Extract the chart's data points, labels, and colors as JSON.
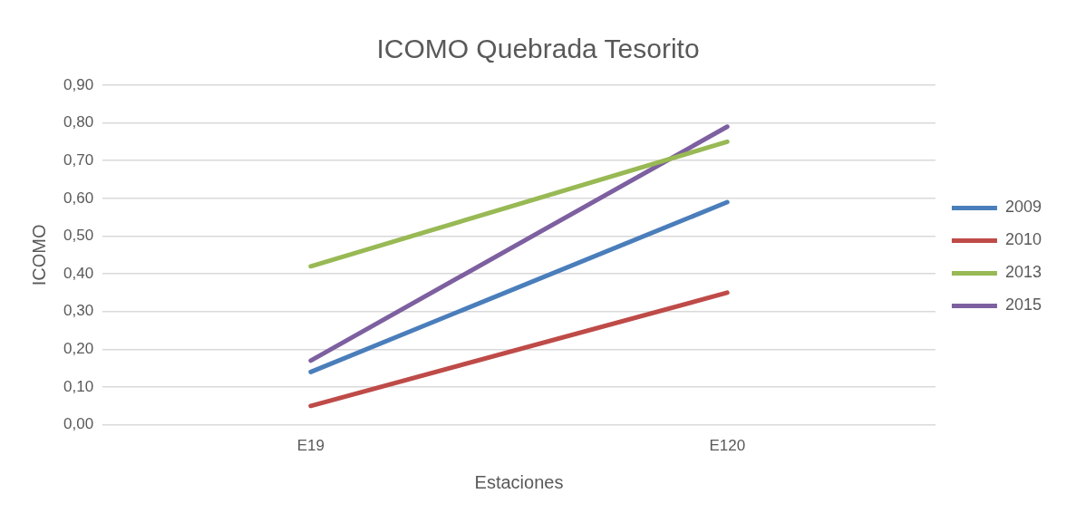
{
  "chart_data": {
    "type": "line",
    "title": "ICOMO Quebrada Tesorito",
    "xlabel": "Estaciones",
    "ylabel": "ICOMO",
    "categories": [
      "E19",
      "E120"
    ],
    "series": [
      {
        "name": "2009",
        "color": "#4a7ebb",
        "values": [
          0.14,
          0.59
        ]
      },
      {
        "name": "2010",
        "color": "#be4b48",
        "values": [
          0.05,
          0.35
        ]
      },
      {
        "name": "2013",
        "color": "#98b954",
        "values": [
          0.42,
          0.75
        ]
      },
      {
        "name": "2015",
        "color": "#7d60a0",
        "values": [
          0.17,
          0.79
        ]
      }
    ],
    "ylim": [
      0,
      0.9
    ],
    "yticks": [
      {
        "value": 0,
        "label": "0,00"
      },
      {
        "value": 0.1,
        "label": "0,10"
      },
      {
        "value": 0.2,
        "label": "0,20"
      },
      {
        "value": 0.3,
        "label": "0,30"
      },
      {
        "value": 0.4,
        "label": "0,40"
      },
      {
        "value": 0.5,
        "label": "0,50"
      },
      {
        "value": 0.6,
        "label": "0,60"
      },
      {
        "value": 0.7,
        "label": "0,70"
      },
      {
        "value": 0.8,
        "label": "0,80"
      },
      {
        "value": 0.9,
        "label": "0,90"
      }
    ],
    "grid": "y",
    "legend": "right",
    "marker": "none",
    "line_style": "solid"
  }
}
